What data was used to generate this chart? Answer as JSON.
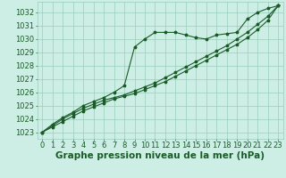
{
  "hours": [
    0,
    1,
    2,
    3,
    4,
    5,
    6,
    7,
    8,
    9,
    10,
    11,
    12,
    13,
    14,
    15,
    16,
    17,
    18,
    19,
    20,
    21,
    22,
    23
  ],
  "line1": [
    1023.0,
    1023.6,
    1024.1,
    1024.5,
    1025.0,
    1025.3,
    1025.6,
    1026.0,
    1026.5,
    1029.4,
    1030.0,
    1030.5,
    1030.5,
    1030.5,
    1030.3,
    1030.1,
    1030.0,
    1030.3,
    1030.4,
    1030.5,
    1031.5,
    1032.0,
    1032.3,
    1032.5
  ],
  "line2": [
    1023.0,
    1023.5,
    1024.0,
    1024.4,
    1024.8,
    1025.1,
    1025.4,
    1025.6,
    1025.8,
    1026.1,
    1026.4,
    1026.7,
    1027.1,
    1027.5,
    1027.9,
    1028.3,
    1028.7,
    1029.1,
    1029.5,
    1030.0,
    1030.5,
    1031.1,
    1031.7,
    1032.5
  ],
  "line3": [
    1023.0,
    1023.4,
    1023.8,
    1024.2,
    1024.6,
    1024.9,
    1025.2,
    1025.5,
    1025.7,
    1025.9,
    1026.2,
    1026.5,
    1026.8,
    1027.2,
    1027.6,
    1028.0,
    1028.4,
    1028.8,
    1029.2,
    1029.6,
    1030.1,
    1030.7,
    1031.4,
    1032.5
  ],
  "bg_color": "#cceee4",
  "grid_color": "#99ccbb",
  "line_color": "#1a5c28",
  "marker": "*",
  "title": "Graphe pression niveau de la mer (hPa)",
  "ylim": [
    1022.5,
    1032.8
  ],
  "yticks": [
    1023,
    1024,
    1025,
    1026,
    1027,
    1028,
    1029,
    1030,
    1031,
    1032
  ],
  "title_fontsize": 7.5,
  "tick_fontsize": 6,
  "fig_width": 3.2,
  "fig_height": 2.0,
  "dpi": 100
}
